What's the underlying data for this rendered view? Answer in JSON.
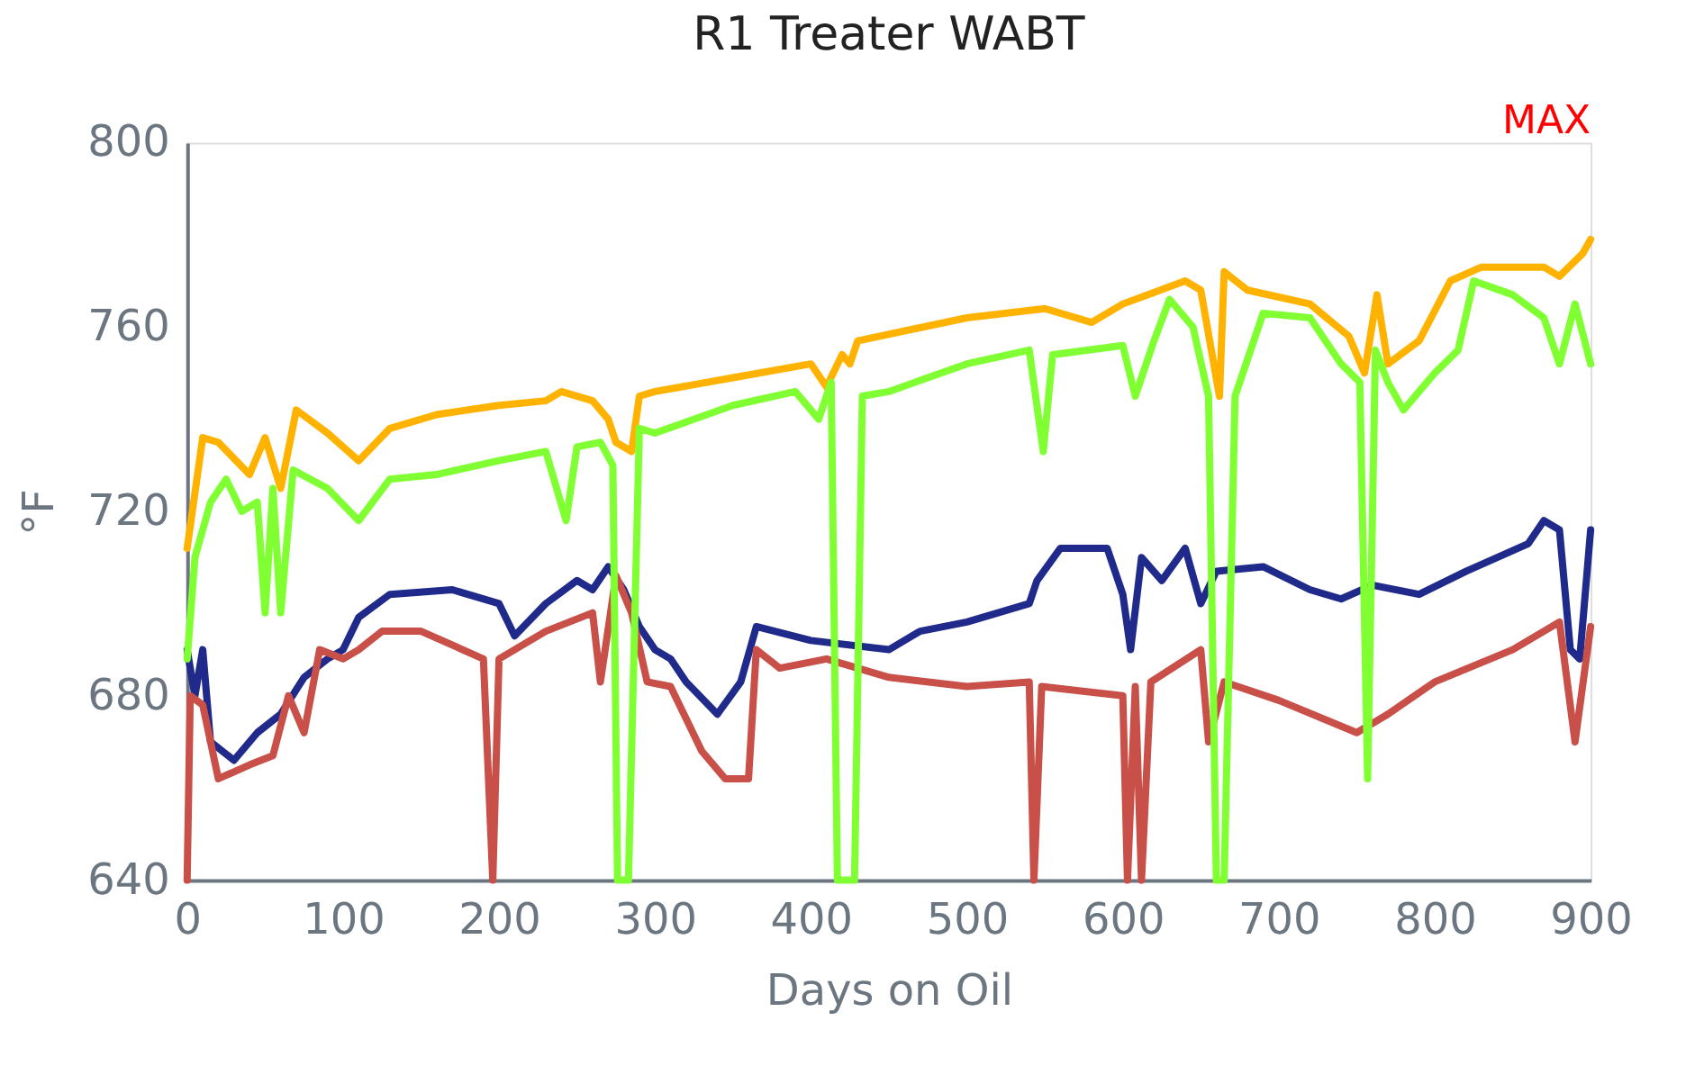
{
  "chart_data": {
    "type": "line",
    "title": "R1 Treater WABT",
    "xlabel": "Days on Oil",
    "ylabel": "°F",
    "annotations": [
      "MAX"
    ],
    "xlim": [
      0,
      900
    ],
    "xticks": [
      0,
      100,
      200,
      300,
      400,
      500,
      600,
      700,
      800,
      900
    ],
    "ylim": [
      640,
      800
    ],
    "yticks": [
      640,
      680,
      720,
      760,
      800
    ],
    "grid": false,
    "legend": false,
    "marker": "none",
    "line_style": "solid",
    "series": [
      {
        "color": "#1f2a8a",
        "x": [
          0,
          5,
          10,
          15,
          30,
          45,
          60,
          75,
          90,
          100,
          110,
          130,
          170,
          200,
          210,
          230,
          250,
          260,
          270,
          280,
          290,
          300,
          310,
          320,
          340,
          355,
          365,
          400,
          450,
          470,
          500,
          540,
          545,
          560,
          590,
          600,
          605,
          612,
          625,
          640,
          650,
          660,
          690,
          720,
          740,
          760,
          790,
          820,
          860,
          870,
          880,
          887,
          893,
          900
        ],
        "values": [
          690,
          680,
          690,
          670,
          666,
          672,
          676,
          684,
          688,
          690,
          697,
          702,
          703,
          700,
          693,
          700,
          705,
          703,
          708,
          703,
          695,
          690,
          688,
          683,
          676,
          683,
          695,
          692,
          690,
          694,
          696,
          700,
          705,
          712,
          712,
          702,
          690,
          710,
          705,
          712,
          700,
          707,
          708,
          703,
          701,
          704,
          702,
          707,
          713,
          718,
          716,
          690,
          688,
          716
        ]
      },
      {
        "color": "#c85048",
        "x": [
          0,
          2,
          10,
          20,
          40,
          55,
          65,
          75,
          85,
          100,
          110,
          125,
          150,
          170,
          190,
          196,
          200,
          230,
          260,
          265,
          275,
          285,
          295,
          310,
          330,
          345,
          360,
          365,
          380,
          410,
          450,
          500,
          540,
          543,
          548,
          600,
          603,
          608,
          612,
          618,
          650,
          655,
          665,
          700,
          750,
          770,
          800,
          850,
          880,
          890,
          900
        ],
        "values": [
          640,
          680,
          678,
          662,
          665,
          667,
          680,
          672,
          690,
          688,
          690,
          694,
          694,
          691,
          688,
          640,
          688,
          694,
          698,
          683,
          706,
          698,
          683,
          682,
          668,
          662,
          662,
          690,
          686,
          688,
          684,
          682,
          683,
          640,
          682,
          680,
          640,
          682,
          640,
          683,
          690,
          670,
          683,
          679,
          672,
          676,
          683,
          690,
          696,
          670,
          695
        ]
      },
      {
        "color": "#ffb300",
        "x": [
          0,
          10,
          20,
          40,
          50,
          60,
          70,
          90,
          110,
          130,
          160,
          200,
          230,
          240,
          260,
          270,
          275,
          285,
          290,
          300,
          350,
          400,
          410,
          420,
          425,
          430,
          500,
          550,
          580,
          600,
          640,
          650,
          662,
          665,
          680,
          720,
          745,
          755,
          763,
          770,
          790,
          810,
          830,
          870,
          880,
          895,
          900
        ],
        "values": [
          712,
          736,
          735,
          728,
          736,
          725,
          742,
          737,
          731,
          738,
          741,
          743,
          744,
          746,
          744,
          740,
          735,
          733,
          745,
          746,
          749,
          752,
          747,
          754,
          752,
          757,
          762,
          764,
          761,
          765,
          770,
          768,
          745,
          772,
          768,
          765,
          758,
          750,
          767,
          752,
          757,
          770,
          773,
          773,
          771,
          776,
          779
        ]
      },
      {
        "color": "#80ff33",
        "x": [
          0,
          5,
          15,
          25,
          35,
          45,
          50,
          55,
          60,
          68,
          90,
          110,
          130,
          160,
          200,
          230,
          243,
          250,
          265,
          273,
          276,
          283,
          290,
          300,
          350,
          390,
          405,
          413,
          417,
          428,
          433,
          450,
          500,
          540,
          549,
          555,
          600,
          608,
          620,
          630,
          645,
          655,
          660,
          665,
          672,
          690,
          720,
          740,
          752,
          757,
          762,
          770,
          780,
          800,
          815,
          825,
          850,
          870,
          880,
          890,
          900
        ],
        "values": [
          688,
          710,
          722,
          727,
          720,
          722,
          698,
          725,
          698,
          729,
          725,
          718,
          727,
          728,
          731,
          733,
          718,
          734,
          735,
          730,
          640,
          640,
          738,
          737,
          743,
          746,
          740,
          748,
          640,
          640,
          745,
          746,
          752,
          755,
          733,
          754,
          756,
          745,
          757,
          766,
          760,
          745,
          640,
          640,
          745,
          763,
          762,
          752,
          748,
          662,
          755,
          748,
          742,
          750,
          755,
          770,
          767,
          762,
          752,
          765,
          752
        ]
      }
    ]
  }
}
